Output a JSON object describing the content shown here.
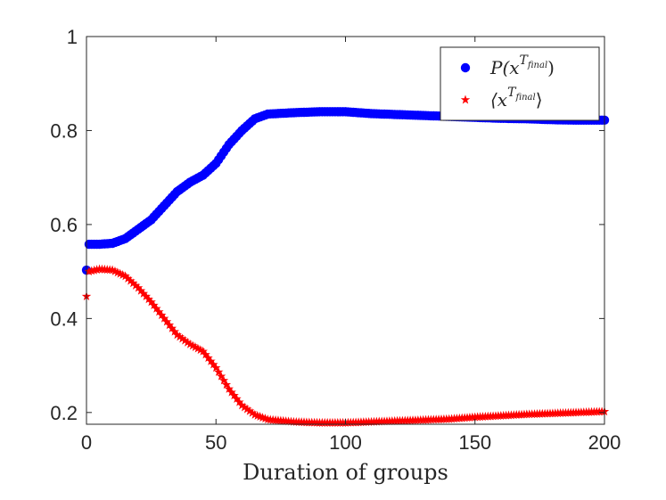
{
  "chart_data": {
    "type": "scatter",
    "title": "",
    "xlabel": "Duration of groups",
    "ylabel": "",
    "xlim": [
      0,
      200
    ],
    "ylim": [
      0.175,
      1.0
    ],
    "xticks": [
      0,
      50,
      100,
      150,
      200
    ],
    "xtick_labels": [
      "0",
      "50",
      "100",
      "150",
      "200"
    ],
    "yticks": [
      0.2,
      0.4,
      0.6,
      0.8,
      1.0
    ],
    "ytick_labels": [
      "0.2",
      "0.4",
      "0.6",
      "0.8",
      "1"
    ],
    "grid": false,
    "legend_position": "top-right",
    "x_start": 0,
    "x_step": 1,
    "series": [
      {
        "name": "P(x^T_final)",
        "legend_label": "P(x",
        "legend_sup": "T",
        "legend_sub": "final",
        "legend_close": ")",
        "marker": "circle",
        "color": "#0000ff",
        "anchors_x": [
          0,
          1,
          5,
          10,
          15,
          20,
          25,
          30,
          35,
          40,
          45,
          50,
          55,
          60,
          65,
          70,
          80,
          90,
          100,
          110,
          120,
          130,
          140,
          150,
          160,
          170,
          180,
          190,
          200
        ],
        "anchors_y": [
          0.503,
          0.558,
          0.558,
          0.56,
          0.57,
          0.59,
          0.61,
          0.64,
          0.67,
          0.69,
          0.705,
          0.73,
          0.77,
          0.8,
          0.825,
          0.835,
          0.838,
          0.84,
          0.84,
          0.836,
          0.834,
          0.832,
          0.83,
          0.828,
          0.826,
          0.825,
          0.823,
          0.822,
          0.822
        ]
      },
      {
        "name": "<x^T_final>",
        "legend_label": "⟨x",
        "legend_sup": "T",
        "legend_sub": "final",
        "legend_close": "⟩",
        "marker": "star",
        "color": "#ff0000",
        "anchors_x": [
          0,
          1,
          5,
          10,
          15,
          20,
          25,
          30,
          35,
          40,
          45,
          50,
          55,
          60,
          65,
          70,
          80,
          90,
          100,
          110,
          120,
          130,
          140,
          150,
          160,
          170,
          180,
          190,
          200
        ],
        "anchors_y": [
          0.447,
          0.5,
          0.505,
          0.503,
          0.49,
          0.465,
          0.435,
          0.4,
          0.365,
          0.345,
          0.33,
          0.295,
          0.25,
          0.215,
          0.195,
          0.185,
          0.18,
          0.178,
          0.178,
          0.18,
          0.182,
          0.184,
          0.186,
          0.19,
          0.193,
          0.196,
          0.198,
          0.2,
          0.202
        ]
      }
    ]
  }
}
